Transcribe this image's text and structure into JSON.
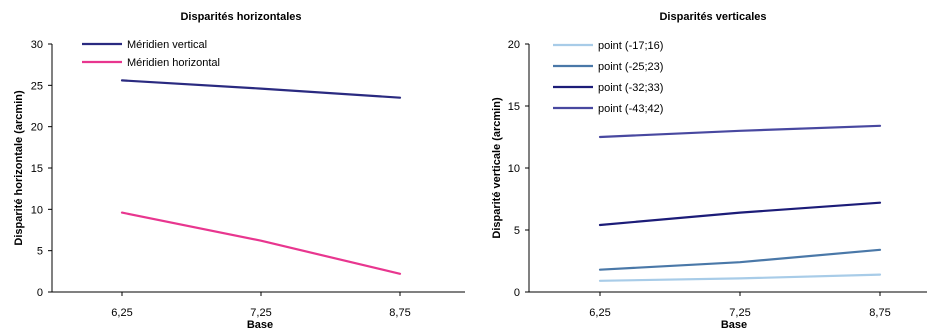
{
  "chart_data": [
    {
      "type": "line",
      "title": "Disparités horizontales",
      "xlabel": "Base",
      "ylabel": "Disparité horizontale (arcmin)",
      "x": [
        "6,25",
        "7,25",
        "8,75"
      ],
      "ylim": [
        0,
        30
      ],
      "yticks": [
        "0",
        "5",
        "10",
        "15",
        "20",
        "25",
        "30"
      ],
      "grid": false,
      "legend_position": "top-left",
      "series": [
        {
          "name": "Méridien vertical",
          "color": "#2a2a80",
          "values": [
            25.6,
            24.6,
            23.5
          ]
        },
        {
          "name": "Méridien horizontal",
          "color": "#e8368f",
          "values": [
            9.6,
            6.2,
            2.2
          ]
        }
      ]
    },
    {
      "type": "line",
      "title": "Disparités verticales",
      "xlabel": "Base",
      "ylabel": "Disparité verticale (arcmin)",
      "x": [
        "6,25",
        "7,25",
        "8,75"
      ],
      "ylim": [
        0,
        20
      ],
      "yticks": [
        "0",
        "5",
        "10",
        "15",
        "20"
      ],
      "grid": false,
      "legend_position": "top-left",
      "series": [
        {
          "name": "point (-17;16)",
          "color": "#a8cce8",
          "values": [
            0.9,
            1.1,
            1.4
          ]
        },
        {
          "name": "point (-25;23)",
          "color": "#4a78a8",
          "values": [
            1.8,
            2.4,
            3.4
          ]
        },
        {
          "name": "point (-32;33)",
          "color": "#1c1c78",
          "values": [
            5.4,
            6.4,
            7.2
          ]
        },
        {
          "name": "point (-43;42)",
          "color": "#4848a0",
          "values": [
            12.5,
            13.0,
            13.4
          ]
        }
      ]
    }
  ]
}
